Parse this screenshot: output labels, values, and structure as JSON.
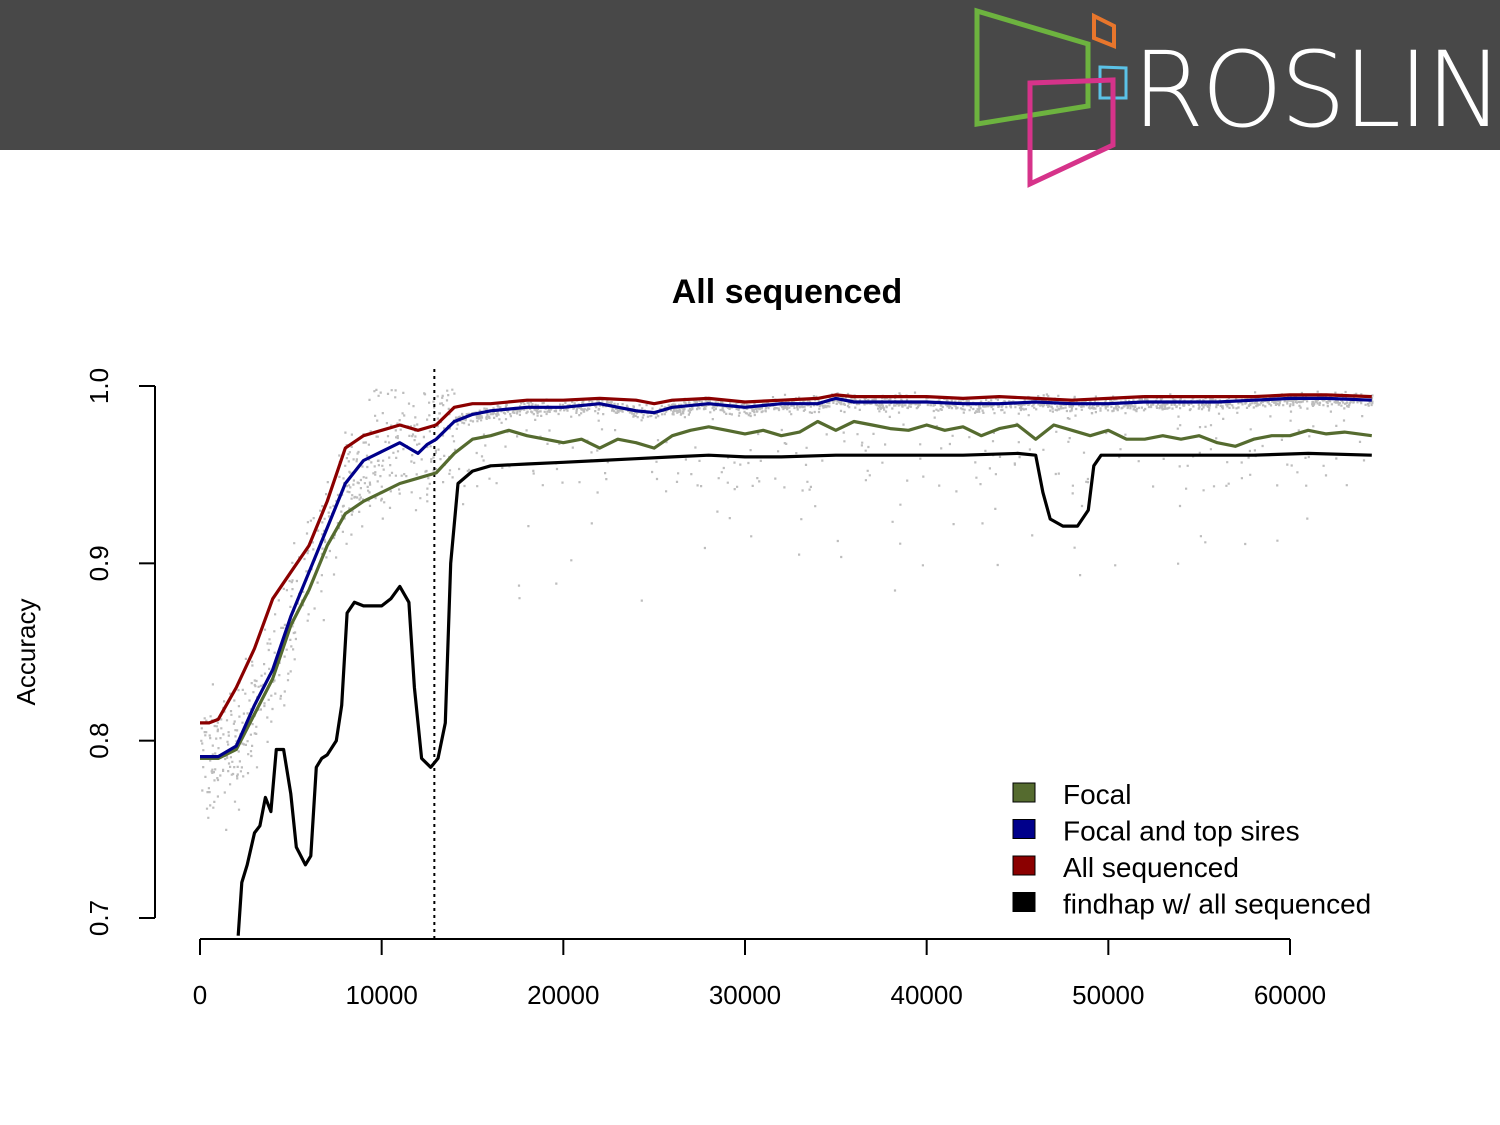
{
  "header": {
    "brand_text": "ROSLIN",
    "background": "#484848",
    "logo_colors": {
      "green": "#6db33f",
      "orange": "#e8762c",
      "blue": "#5bc2e7",
      "pink": "#d6338a"
    }
  },
  "chart_data": {
    "type": "line",
    "title": "All sequenced",
    "xlabel": "",
    "ylabel": "Accuracy",
    "xlim": [
      0,
      65000
    ],
    "ylim": [
      0.7,
      1.0
    ],
    "x_ticks": [
      "0",
      "10000",
      "20000",
      "30000",
      "40000",
      "50000",
      "60000"
    ],
    "y_ticks": [
      "0.7",
      "0.8",
      "0.9",
      "1.0"
    ],
    "vertical_reference_line": 12900,
    "background_points": {
      "color": "#bdbdbd"
    },
    "legend": {
      "position": "bottom-right"
    },
    "series": [
      {
        "name": "Focal",
        "color": "#556b2f",
        "points": [
          [
            0,
            0.79
          ],
          [
            1000,
            0.79
          ],
          [
            2000,
            0.795
          ],
          [
            3000,
            0.815
          ],
          [
            4000,
            0.835
          ],
          [
            5000,
            0.865
          ],
          [
            6000,
            0.885
          ],
          [
            7000,
            0.91
          ],
          [
            8000,
            0.928
          ],
          [
            9000,
            0.935
          ],
          [
            10000,
            0.94
          ],
          [
            11000,
            0.945
          ],
          [
            12000,
            0.948
          ],
          [
            13000,
            0.951
          ],
          [
            14000,
            0.962
          ],
          [
            15000,
            0.97
          ],
          [
            16000,
            0.972
          ],
          [
            17000,
            0.975
          ],
          [
            18000,
            0.972
          ],
          [
            19000,
            0.97
          ],
          [
            20000,
            0.968
          ],
          [
            21000,
            0.97
          ],
          [
            22000,
            0.965
          ],
          [
            23000,
            0.97
          ],
          [
            24000,
            0.968
          ],
          [
            25000,
            0.965
          ],
          [
            26000,
            0.972
          ],
          [
            27000,
            0.975
          ],
          [
            28000,
            0.977
          ],
          [
            29000,
            0.975
          ],
          [
            30000,
            0.973
          ],
          [
            31000,
            0.975
          ],
          [
            32000,
            0.972
          ],
          [
            33000,
            0.974
          ],
          [
            34000,
            0.98
          ],
          [
            35000,
            0.975
          ],
          [
            36000,
            0.98
          ],
          [
            37000,
            0.978
          ],
          [
            38000,
            0.976
          ],
          [
            39000,
            0.975
          ],
          [
            40000,
            0.978
          ],
          [
            41000,
            0.975
          ],
          [
            42000,
            0.977
          ],
          [
            43000,
            0.972
          ],
          [
            44000,
            0.976
          ],
          [
            45000,
            0.978
          ],
          [
            46000,
            0.97
          ],
          [
            47000,
            0.978
          ],
          [
            48000,
            0.975
          ],
          [
            49000,
            0.972
          ],
          [
            50000,
            0.975
          ],
          [
            51000,
            0.97
          ],
          [
            52000,
            0.97
          ],
          [
            53000,
            0.972
          ],
          [
            54000,
            0.97
          ],
          [
            55000,
            0.972
          ],
          [
            56000,
            0.968
          ],
          [
            57000,
            0.966
          ],
          [
            58000,
            0.97
          ],
          [
            59000,
            0.972
          ],
          [
            60000,
            0.972
          ],
          [
            61000,
            0.975
          ],
          [
            62000,
            0.973
          ],
          [
            63000,
            0.974
          ],
          [
            64500,
            0.972
          ]
        ]
      },
      {
        "name": "Focal and top sires",
        "color": "#00008b",
        "points": [
          [
            0,
            0.791
          ],
          [
            1000,
            0.791
          ],
          [
            2000,
            0.797
          ],
          [
            3000,
            0.82
          ],
          [
            4000,
            0.84
          ],
          [
            5000,
            0.87
          ],
          [
            6000,
            0.895
          ],
          [
            7000,
            0.92
          ],
          [
            8000,
            0.945
          ],
          [
            9000,
            0.958
          ],
          [
            10000,
            0.963
          ],
          [
            11000,
            0.968
          ],
          [
            12000,
            0.962
          ],
          [
            12500,
            0.967
          ],
          [
            13000,
            0.97
          ],
          [
            14000,
            0.98
          ],
          [
            15000,
            0.984
          ],
          [
            16000,
            0.986
          ],
          [
            18000,
            0.988
          ],
          [
            20000,
            0.988
          ],
          [
            22000,
            0.99
          ],
          [
            24000,
            0.986
          ],
          [
            25000,
            0.985
          ],
          [
            26000,
            0.988
          ],
          [
            28000,
            0.99
          ],
          [
            30000,
            0.988
          ],
          [
            32000,
            0.99
          ],
          [
            34000,
            0.99
          ],
          [
            35000,
            0.993
          ],
          [
            36000,
            0.991
          ],
          [
            38000,
            0.991
          ],
          [
            40000,
            0.991
          ],
          [
            42000,
            0.99
          ],
          [
            44000,
            0.99
          ],
          [
            46000,
            0.991
          ],
          [
            48000,
            0.99
          ],
          [
            50000,
            0.99
          ],
          [
            52000,
            0.991
          ],
          [
            54000,
            0.991
          ],
          [
            56000,
            0.991
          ],
          [
            58000,
            0.992
          ],
          [
            60000,
            0.993
          ],
          [
            62000,
            0.993
          ],
          [
            64500,
            0.992
          ]
        ]
      },
      {
        "name": "All sequenced",
        "color": "#8b0000",
        "points": [
          [
            0,
            0.81
          ],
          [
            500,
            0.81
          ],
          [
            1000,
            0.812
          ],
          [
            2000,
            0.83
          ],
          [
            3000,
            0.852
          ],
          [
            4000,
            0.88
          ],
          [
            5000,
            0.895
          ],
          [
            6000,
            0.91
          ],
          [
            7000,
            0.935
          ],
          [
            8000,
            0.965
          ],
          [
            9000,
            0.972
          ],
          [
            10000,
            0.975
          ],
          [
            11000,
            0.978
          ],
          [
            12000,
            0.975
          ],
          [
            13000,
            0.978
          ],
          [
            14000,
            0.988
          ],
          [
            15000,
            0.99
          ],
          [
            16000,
            0.99
          ],
          [
            18000,
            0.992
          ],
          [
            20000,
            0.992
          ],
          [
            22000,
            0.993
          ],
          [
            24000,
            0.992
          ],
          [
            25000,
            0.99
          ],
          [
            26000,
            0.992
          ],
          [
            28000,
            0.993
          ],
          [
            30000,
            0.991
          ],
          [
            32000,
            0.992
          ],
          [
            34000,
            0.993
          ],
          [
            35000,
            0.995
          ],
          [
            36000,
            0.994
          ],
          [
            38000,
            0.994
          ],
          [
            40000,
            0.994
          ],
          [
            42000,
            0.993
          ],
          [
            44000,
            0.994
          ],
          [
            46000,
            0.993
          ],
          [
            48000,
            0.992
          ],
          [
            50000,
            0.993
          ],
          [
            52000,
            0.994
          ],
          [
            54000,
            0.994
          ],
          [
            56000,
            0.994
          ],
          [
            58000,
            0.994
          ],
          [
            60000,
            0.995
          ],
          [
            62000,
            0.995
          ],
          [
            64500,
            0.994
          ]
        ]
      },
      {
        "name": "findhap w/ all sequenced",
        "color": "#000000",
        "points": [
          [
            2100,
            0.69
          ],
          [
            2300,
            0.72
          ],
          [
            2600,
            0.73
          ],
          [
            3000,
            0.748
          ],
          [
            3300,
            0.752
          ],
          [
            3600,
            0.768
          ],
          [
            3900,
            0.76
          ],
          [
            4200,
            0.795
          ],
          [
            4600,
            0.795
          ],
          [
            5000,
            0.77
          ],
          [
            5300,
            0.74
          ],
          [
            5800,
            0.73
          ],
          [
            6100,
            0.735
          ],
          [
            6400,
            0.785
          ],
          [
            6700,
            0.79
          ],
          [
            7000,
            0.792
          ],
          [
            7500,
            0.8
          ],
          [
            7800,
            0.82
          ],
          [
            8100,
            0.872
          ],
          [
            8500,
            0.878
          ],
          [
            9000,
            0.876
          ],
          [
            10000,
            0.876
          ],
          [
            10500,
            0.88
          ],
          [
            11000,
            0.887
          ],
          [
            11500,
            0.878
          ],
          [
            11800,
            0.83
          ],
          [
            12200,
            0.79
          ],
          [
            12700,
            0.785
          ],
          [
            13100,
            0.79
          ],
          [
            13500,
            0.81
          ],
          [
            13800,
            0.9
          ],
          [
            14200,
            0.945
          ],
          [
            15000,
            0.952
          ],
          [
            16000,
            0.955
          ],
          [
            18000,
            0.956
          ],
          [
            20000,
            0.957
          ],
          [
            22000,
            0.958
          ],
          [
            24000,
            0.959
          ],
          [
            26000,
            0.96
          ],
          [
            28000,
            0.961
          ],
          [
            30000,
            0.96
          ],
          [
            32000,
            0.96
          ],
          [
            35000,
            0.961
          ],
          [
            38000,
            0.961
          ],
          [
            42000,
            0.961
          ],
          [
            45000,
            0.962
          ],
          [
            46000,
            0.961
          ],
          [
            46400,
            0.94
          ],
          [
            46800,
            0.925
          ],
          [
            47500,
            0.921
          ],
          [
            48300,
            0.921
          ],
          [
            48900,
            0.93
          ],
          [
            49200,
            0.955
          ],
          [
            49600,
            0.961
          ],
          [
            52000,
            0.961
          ],
          [
            55000,
            0.961
          ],
          [
            58000,
            0.961
          ],
          [
            61000,
            0.962
          ],
          [
            64500,
            0.961
          ]
        ]
      }
    ]
  }
}
